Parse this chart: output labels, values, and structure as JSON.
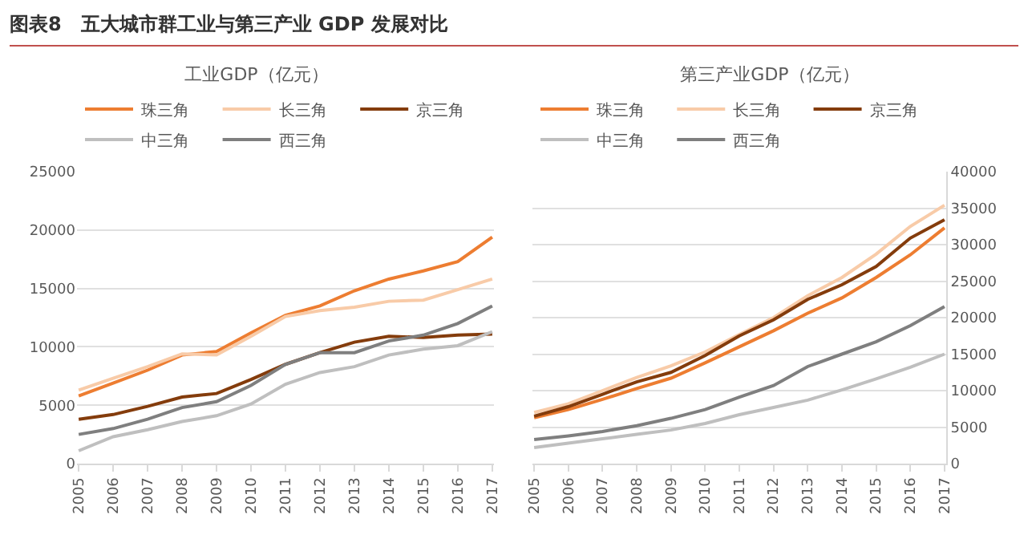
{
  "chart_data": [
    {
      "type": "line",
      "title": "工业GDP（亿元）",
      "annotations": [
        "图表8　五大城市群工业与第三产业 GDP 发展对比"
      ],
      "categories": [
        "2005",
        "2006",
        "2007",
        "2008",
        "2009",
        "2010",
        "2011",
        "2012",
        "2013",
        "2014",
        "2015",
        "2016",
        "2017"
      ],
      "ylim": [
        0,
        25000
      ],
      "yticks": [
        0,
        5000,
        10000,
        15000,
        20000,
        25000
      ],
      "grid": "y",
      "legend": "top",
      "marker": "none",
      "line_style": "solid",
      "series": [
        {
          "name": "珠三角",
          "color": "#ed7d31",
          "values": [
            5800,
            6900,
            8000,
            9300,
            9600,
            11200,
            12700,
            13500,
            14800,
            15800,
            16500,
            17300,
            19400
          ]
        },
        {
          "name": "长三角",
          "color": "#f8cba8",
          "values": [
            6300,
            7300,
            8300,
            9400,
            9300,
            10900,
            12600,
            13100,
            13400,
            13900,
            14000,
            14900,
            15800
          ]
        },
        {
          "name": "京三角",
          "color": "#843c0c",
          "values": [
            3800,
            4200,
            4900,
            5700,
            6000,
            7200,
            8500,
            9500,
            10400,
            10900,
            10800,
            11000,
            11100
          ]
        },
        {
          "name": "中三角",
          "color": "#bfbfbf",
          "values": [
            1100,
            2300,
            2900,
            3600,
            4100,
            5100,
            6800,
            7800,
            8300,
            9300,
            9800,
            10100,
            11300
          ]
        },
        {
          "name": "西三角",
          "color": "#7f7f7f",
          "values": [
            2500,
            3000,
            3800,
            4800,
            5300,
            6700,
            8500,
            9500,
            9500,
            10500,
            11000,
            12000,
            13500
          ]
        }
      ]
    },
    {
      "type": "line",
      "title": "第三产业GDP（亿元）",
      "categories": [
        "2005",
        "2006",
        "2007",
        "2008",
        "2009",
        "2010",
        "2011",
        "2012",
        "2013",
        "2014",
        "2015",
        "2016",
        "2017"
      ],
      "y2lim": [
        0,
        40000
      ],
      "y2ticks": [
        0,
        5000,
        10000,
        15000,
        20000,
        25000,
        30000,
        35000,
        40000
      ],
      "grid": "y",
      "legend": "top",
      "marker": "none",
      "line_style": "solid",
      "series": [
        {
          "name": "珠三角",
          "color": "#ed7d31",
          "axis": "y2",
          "values": [
            6300,
            7400,
            8800,
            10300,
            11700,
            13800,
            16000,
            18200,
            20600,
            22700,
            25500,
            28600,
            32300
          ]
        },
        {
          "name": "长三角",
          "color": "#f8cba8",
          "axis": "y2",
          "values": [
            7000,
            8200,
            10000,
            11800,
            13400,
            15300,
            17700,
            20000,
            23000,
            25500,
            28700,
            32500,
            35400
          ]
        },
        {
          "name": "京三角",
          "color": "#843c0c",
          "axis": "y2",
          "values": [
            6500,
            7800,
            9500,
            11200,
            12500,
            14800,
            17500,
            19700,
            22500,
            24500,
            27000,
            30900,
            33400
          ]
        },
        {
          "name": "中三角",
          "color": "#bfbfbf",
          "axis": "y2",
          "values": [
            2200,
            2800,
            3400,
            4000,
            4600,
            5500,
            6700,
            7700,
            8700,
            10100,
            11600,
            13200,
            15000
          ]
        },
        {
          "name": "西三角",
          "color": "#7f7f7f",
          "axis": "y2",
          "values": [
            3300,
            3800,
            4400,
            5200,
            6200,
            7400,
            9100,
            10700,
            13300,
            15000,
            16700,
            18900,
            21500
          ]
        }
      ]
    }
  ]
}
